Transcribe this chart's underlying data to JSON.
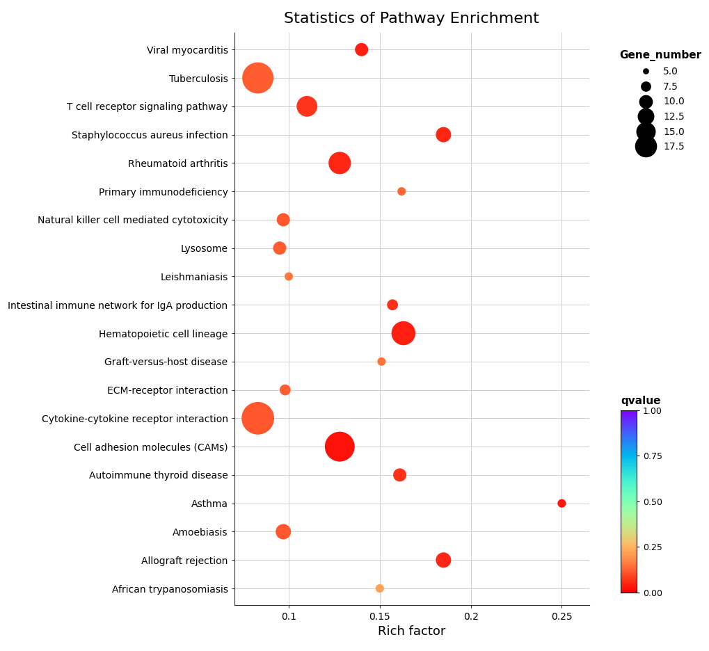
{
  "title": "Statistics of Pathway Enrichment",
  "xlabel": "Rich factor",
  "pathways": [
    "Viral myocarditis",
    "Tuberculosis",
    "T cell receptor signaling pathway",
    "Staphylococcus aureus infection",
    "Rheumatoid arthritis",
    "Primary immunodeficiency",
    "Natural killer cell mediated cytotoxicity",
    "Lysosome",
    "Leishmaniasis",
    "Intestinal immune network for IgA production",
    "Hematopoietic cell lineage",
    "Graft-versus-host disease",
    "ECM-receptor interaction",
    "Cytokine-cytokine receptor interaction",
    "Cell adhesion molecules (CAMs)",
    "Autoimmune thyroid disease",
    "Asthma",
    "Amoebiasis",
    "Allograft rejection",
    "African trypanosomiasis"
  ],
  "rich_factor": [
    0.14,
    0.083,
    0.11,
    0.185,
    0.128,
    0.162,
    0.097,
    0.095,
    0.1,
    0.157,
    0.163,
    0.151,
    0.098,
    0.083,
    0.128,
    0.161,
    0.25,
    0.097,
    0.185,
    0.15
  ],
  "gene_number": [
    7,
    18,
    11,
    8,
    12,
    5,
    7,
    7,
    5,
    6,
    13,
    5,
    6,
    19,
    17,
    7,
    5,
    8,
    8,
    5
  ],
  "qvalue": [
    0.04,
    0.12,
    0.07,
    0.05,
    0.05,
    0.13,
    0.11,
    0.12,
    0.16,
    0.06,
    0.04,
    0.15,
    0.12,
    0.11,
    0.02,
    0.06,
    0.03,
    0.11,
    0.05,
    0.22
  ],
  "xlim": [
    0.07,
    0.265
  ],
  "xticks": [
    0.1,
    0.15,
    0.2,
    0.25
  ],
  "background_color": "#ffffff",
  "grid_color": "#d0d0d0",
  "size_legend_values": [
    5.0,
    7.5,
    10.0,
    12.5,
    15.0,
    17.5
  ],
  "cbar_ticks": [
    0.0,
    0.25,
    0.5,
    0.75,
    1.0
  ],
  "cbar_ticklabels": [
    "0.00",
    "0.25",
    "0.50",
    "0.75",
    "1.00"
  ]
}
